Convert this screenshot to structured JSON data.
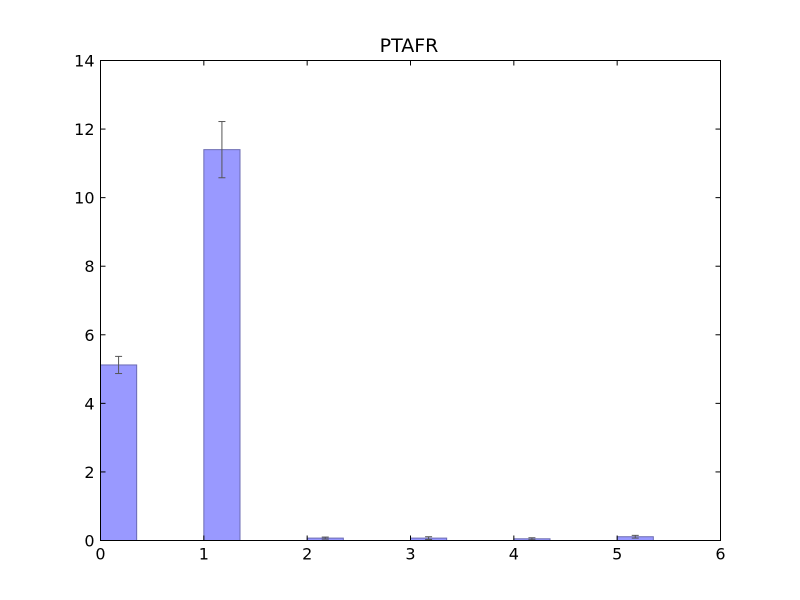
{
  "chart_data": {
    "type": "bar",
    "title": "PTAFR",
    "xlabel": "",
    "ylabel": "",
    "xlim": [
      0,
      6
    ],
    "ylim": [
      0,
      14
    ],
    "xticks": [
      "0",
      "1",
      "2",
      "3",
      "4",
      "5",
      "6"
    ],
    "yticks": [
      "0",
      "2",
      "4",
      "6",
      "8",
      "10",
      "12",
      "14"
    ],
    "bar_width": 0.35,
    "grid": false,
    "legend": "none",
    "bar_color": "#9999ff",
    "bar_edge_color": "#6b6bb3",
    "error_color": "#555555",
    "bars": [
      {
        "x": 0,
        "value": 5.12,
        "error": 0.25
      },
      {
        "x": 1,
        "value": 11.4,
        "error": 0.82
      },
      {
        "x": 2,
        "value": 0.07,
        "error": 0.03
      },
      {
        "x": 3,
        "value": 0.07,
        "error": 0.04
      },
      {
        "x": 4,
        "value": 0.05,
        "error": 0.03
      },
      {
        "x": 5,
        "value": 0.11,
        "error": 0.04
      }
    ]
  }
}
